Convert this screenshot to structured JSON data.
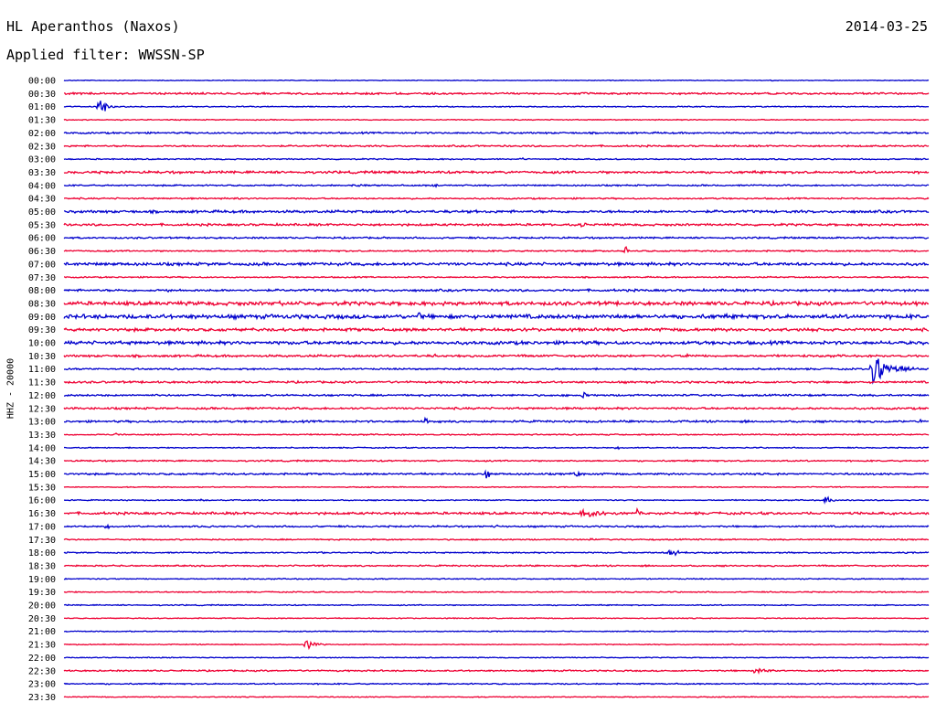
{
  "header": {
    "station": "HL Aperanthos (Naxos)",
    "date": "2014-03-25",
    "filter_label": "Applied filter: WWSSN-SP"
  },
  "axis": {
    "ylabel": "HHZ - 20000"
  },
  "colors": {
    "even_trace": "#0000cc",
    "odd_trace": "#ee0033",
    "text": "#000000",
    "background": "#ffffff"
  },
  "chart_data": {
    "type": "line",
    "title": "HL Aperanthos (Naxos)",
    "subtitle": "Applied filter: WWSSN-SP",
    "ylabel": "HHZ - 20000",
    "xlabel": "",
    "row_minutes": 30,
    "grid": false,
    "rows": [
      {
        "label": "00:00",
        "noise": 0.4,
        "events": [
          {
            "pos": 0.82,
            "amp": 2,
            "dur": 0.004
          }
        ]
      },
      {
        "label": "00:30",
        "noise": 1.0,
        "events": []
      },
      {
        "label": "01:00",
        "noise": 0.6,
        "events": [
          {
            "pos": 0.04,
            "amp": 16,
            "dur": 0.022
          }
        ]
      },
      {
        "label": "01:30",
        "noise": 0.5,
        "events": []
      },
      {
        "label": "02:00",
        "noise": 0.9,
        "events": []
      },
      {
        "label": "02:30",
        "noise": 0.9,
        "events": [
          {
            "pos": 0.98,
            "amp": 2,
            "dur": 0.008
          }
        ]
      },
      {
        "label": "03:00",
        "noise": 0.7,
        "events": [
          {
            "pos": 0.53,
            "amp": 2,
            "dur": 0.006
          }
        ]
      },
      {
        "label": "03:30",
        "noise": 1.3,
        "events": []
      },
      {
        "label": "04:00",
        "noise": 0.8,
        "events": [
          {
            "pos": 0.34,
            "amp": 6,
            "dur": 0.018
          },
          {
            "pos": 0.43,
            "amp": 3,
            "dur": 0.01
          }
        ]
      },
      {
        "label": "04:30",
        "noise": 0.8,
        "events": [
          {
            "pos": 0.2,
            "amp": 2,
            "dur": 0.01
          }
        ]
      },
      {
        "label": "05:00",
        "noise": 1.4,
        "events": []
      },
      {
        "label": "05:30",
        "noise": 1.2,
        "events": [
          {
            "pos": 0.56,
            "amp": 3,
            "dur": 0.01
          },
          {
            "pos": 0.6,
            "amp": 6,
            "dur": 0.01
          }
        ]
      },
      {
        "label": "06:00",
        "noise": 0.9,
        "events": [
          {
            "pos": 0.37,
            "amp": 3,
            "dur": 0.005
          }
        ]
      },
      {
        "label": "06:30",
        "noise": 0.8,
        "events": [
          {
            "pos": 0.65,
            "amp": 8,
            "dur": 0.008
          },
          {
            "pos": 0.94,
            "amp": 3,
            "dur": 0.005
          }
        ]
      },
      {
        "label": "07:00",
        "noise": 1.6,
        "events": []
      },
      {
        "label": "07:30",
        "noise": 0.7,
        "events": []
      },
      {
        "label": "08:00",
        "noise": 1.2,
        "events": [
          {
            "pos": 0.12,
            "amp": 3,
            "dur": 0.01
          }
        ]
      },
      {
        "label": "08:30",
        "noise": 2.0,
        "events": [
          {
            "pos": 0.25,
            "amp": 5,
            "dur": 0.02
          }
        ]
      },
      {
        "label": "09:00",
        "noise": 2.2,
        "events": [
          {
            "pos": 0.41,
            "amp": 9,
            "dur": 0.008
          },
          {
            "pos": 0.63,
            "amp": 4,
            "dur": 0.02
          }
        ]
      },
      {
        "label": "09:30",
        "noise": 1.6,
        "events": [
          {
            "pos": 0.87,
            "amp": 3,
            "dur": 0.02
          }
        ]
      },
      {
        "label": "10:00",
        "noise": 1.8,
        "events": []
      },
      {
        "label": "10:30",
        "noise": 1.2,
        "events": [
          {
            "pos": 0.43,
            "amp": 7,
            "dur": 0.01
          },
          {
            "pos": 0.72,
            "amp": 3,
            "dur": 0.01
          }
        ]
      },
      {
        "label": "11:00",
        "noise": 0.9,
        "events": [
          {
            "pos": 0.935,
            "amp": 20,
            "dur": 0.07
          }
        ]
      },
      {
        "label": "11:30",
        "noise": 1.1,
        "events": []
      },
      {
        "label": "12:00",
        "noise": 1.0,
        "events": [
          {
            "pos": 0.6,
            "amp": 6,
            "dur": 0.012
          }
        ]
      },
      {
        "label": "12:30",
        "noise": 1.1,
        "events": [
          {
            "pos": 0.01,
            "amp": 3,
            "dur": 0.02
          }
        ]
      },
      {
        "label": "13:00",
        "noise": 1.1,
        "events": [
          {
            "pos": 0.42,
            "amp": 11,
            "dur": 0.004
          },
          {
            "pos": 0.99,
            "amp": 3,
            "dur": 0.006
          }
        ]
      },
      {
        "label": "13:30",
        "noise": 0.7,
        "events": [
          {
            "pos": 0.06,
            "amp": 3,
            "dur": 0.004
          }
        ]
      },
      {
        "label": "14:00",
        "noise": 0.6,
        "events": [
          {
            "pos": 0.64,
            "amp": 3,
            "dur": 0.012
          }
        ]
      },
      {
        "label": "14:30",
        "noise": 0.8,
        "events": []
      },
      {
        "label": "15:00",
        "noise": 1.0,
        "events": [
          {
            "pos": 0.49,
            "amp": 11,
            "dur": 0.006
          },
          {
            "pos": 0.59,
            "amp": 4,
            "dur": 0.03
          }
        ]
      },
      {
        "label": "15:30",
        "noise": 0.5,
        "events": []
      },
      {
        "label": "16:00",
        "noise": 0.6,
        "events": [
          {
            "pos": 0.16,
            "amp": 3,
            "dur": 0.01
          },
          {
            "pos": 0.88,
            "amp": 6,
            "dur": 0.025
          }
        ]
      },
      {
        "label": "16:30",
        "noise": 1.3,
        "events": [
          {
            "pos": 0.6,
            "amp": 5,
            "dur": 0.12
          },
          {
            "pos": 0.665,
            "amp": 12,
            "dur": 0.006
          }
        ]
      },
      {
        "label": "17:00",
        "noise": 0.9,
        "events": [
          {
            "pos": 0.05,
            "amp": 5,
            "dur": 0.01
          },
          {
            "pos": 0.5,
            "amp": 3,
            "dur": 0.005
          }
        ]
      },
      {
        "label": "17:30",
        "noise": 0.7,
        "events": [
          {
            "pos": 0.61,
            "amp": 3,
            "dur": 0.01
          }
        ]
      },
      {
        "label": "18:00",
        "noise": 0.7,
        "events": [
          {
            "pos": 0.3,
            "amp": 3,
            "dur": 0.005
          },
          {
            "pos": 0.7,
            "amp": 8,
            "dur": 0.03
          }
        ]
      },
      {
        "label": "18:30",
        "noise": 0.8,
        "events": [
          {
            "pos": 0.59,
            "amp": 2,
            "dur": 0.01
          }
        ]
      },
      {
        "label": "19:00",
        "noise": 0.6,
        "events": []
      },
      {
        "label": "19:30",
        "noise": 0.6,
        "events": []
      },
      {
        "label": "20:00",
        "noise": 0.6,
        "events": []
      },
      {
        "label": "20:30",
        "noise": 0.5,
        "events": []
      },
      {
        "label": "21:00",
        "noise": 0.5,
        "events": []
      },
      {
        "label": "21:30",
        "noise": 0.5,
        "events": [
          {
            "pos": 0.28,
            "amp": 7,
            "dur": 0.03
          }
        ]
      },
      {
        "label": "22:00",
        "noise": 0.5,
        "events": []
      },
      {
        "label": "22:30",
        "noise": 0.8,
        "events": [
          {
            "pos": 0.32,
            "amp": 3,
            "dur": 0.005
          },
          {
            "pos": 0.8,
            "amp": 6,
            "dur": 0.04
          }
        ]
      },
      {
        "label": "23:00",
        "noise": 0.7,
        "events": []
      },
      {
        "label": "23:30",
        "noise": 0.5,
        "events": []
      }
    ]
  }
}
